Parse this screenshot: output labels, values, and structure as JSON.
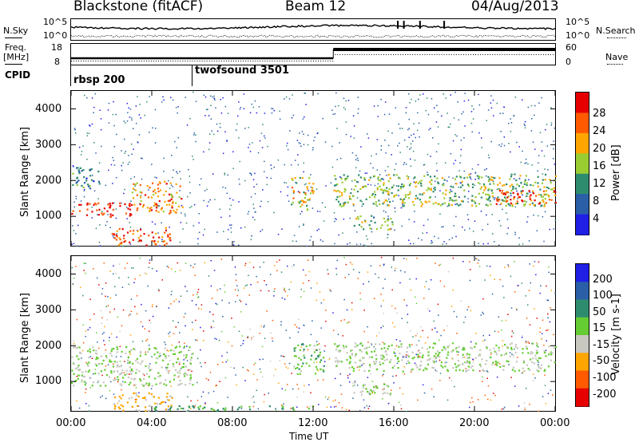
{
  "header": {
    "station": "Blackstone (fitACF)",
    "beam": "Beam 12",
    "date": "04/Aug/2013"
  },
  "noise_panel": {
    "left_label": "N.Sky",
    "right_label": "N.Search",
    "ticks_left": [
      "10^5",
      "10^0"
    ],
    "ticks_right": [
      "10^5",
      "10^0"
    ]
  },
  "freq_panel": {
    "left_label_1": "Freq.",
    "left_label_2": "[MHz]",
    "right_label": "Nave",
    "ticks_left": [
      "18",
      "8"
    ],
    "ticks_right": [
      "60",
      "0"
    ]
  },
  "cpid_panel": {
    "label": "CPID",
    "programs": [
      {
        "name": "rbsp 200",
        "start_hour": 0
      },
      {
        "name": "twofsound 3501",
        "start_hour": 6
      }
    ]
  },
  "chart_data": [
    {
      "type": "heatmap",
      "name": "power",
      "ylabel": "Slant Range [km]",
      "ytick_labels": [
        "1000",
        "2000",
        "3000",
        "4000"
      ],
      "yticks": [
        1000,
        2000,
        3000,
        4000
      ],
      "ylim": [
        180,
        4500
      ],
      "xlim": [
        0,
        24
      ],
      "colorbar_label": "Power [dB]",
      "colorbar_ticks": [
        "4",
        "8",
        "12",
        "16",
        "20",
        "24",
        "28"
      ],
      "colorbar_values": [
        4,
        8,
        12,
        16,
        20,
        24,
        28
      ],
      "colorbar_colors": [
        "#1f1fe6",
        "#2a5fa8",
        "#2e8c6e",
        "#9acd32",
        "#ffa500",
        "#ff5a00",
        "#e60000"
      ],
      "bands": [
        {
          "t0": 0,
          "t1": 3,
          "r0": 1000,
          "r1": 1400,
          "level": 27
        },
        {
          "t0": 3,
          "t1": 5.5,
          "r0": 1100,
          "r1": 2000,
          "level": 22
        },
        {
          "t0": 0,
          "t1": 1.5,
          "r0": 1800,
          "r1": 2400,
          "level": 10
        },
        {
          "t0": 2,
          "t1": 5,
          "r0": 200,
          "r1": 700,
          "level": 24
        },
        {
          "t0": 10.8,
          "t1": 12,
          "r0": 1200,
          "r1": 2100,
          "level": 18
        },
        {
          "t0": 13,
          "t1": 24,
          "r0": 1300,
          "r1": 2200,
          "level": 15
        },
        {
          "t0": 21,
          "t1": 24,
          "r0": 1350,
          "r1": 1750,
          "level": 26
        },
        {
          "t0": 14,
          "t1": 16,
          "r0": 650,
          "r1": 1050,
          "level": 14
        }
      ]
    },
    {
      "type": "heatmap",
      "name": "velocity",
      "ylabel": "Slant Range [km]",
      "ytick_labels": [
        "1000",
        "2000",
        "3000",
        "4000"
      ],
      "yticks": [
        1000,
        2000,
        3000,
        4000
      ],
      "ylim": [
        180,
        4500
      ],
      "xlim": [
        0,
        24
      ],
      "xlabel": "Time UT",
      "xtick_labels": [
        "00:00",
        "04:00",
        "08:00",
        "12:00",
        "16:00",
        "20:00",
        "00:00"
      ],
      "xticks": [
        0,
        4,
        8,
        12,
        16,
        20,
        24
      ],
      "colorbar_label": "Velocity [m s-1]",
      "colorbar_ticks": [
        "200",
        "100",
        "50",
        "15",
        "-15",
        "-50",
        "-100",
        "-200"
      ],
      "colorbar_values": [
        200,
        100,
        50,
        15,
        -15,
        -50,
        -100,
        -200
      ],
      "colorbar_colors": [
        "#1f1fe6",
        "#2a5fa8",
        "#2e8c6e",
        "#66cc33",
        "#c8c8c0",
        "#ffa500",
        "#ff5a00",
        "#e60000"
      ],
      "bands": [
        {
          "t0": 0,
          "t1": 6,
          "r0": 900,
          "r1": 2000,
          "level": 0
        },
        {
          "t0": 2,
          "t1": 5,
          "r0": 200,
          "r1": 700,
          "level": -40
        },
        {
          "t0": 4,
          "t1": 12,
          "r0": 200,
          "r1": 350,
          "level": 30
        },
        {
          "t0": 11,
          "t1": 12.5,
          "r0": 1200,
          "r1": 2100,
          "level": 20
        },
        {
          "t0": 13,
          "t1": 24,
          "r0": 1300,
          "r1": 2100,
          "level": 0
        },
        {
          "t0": 14,
          "t1": 16,
          "r0": 650,
          "r1": 1050,
          "level": 0
        }
      ]
    }
  ]
}
